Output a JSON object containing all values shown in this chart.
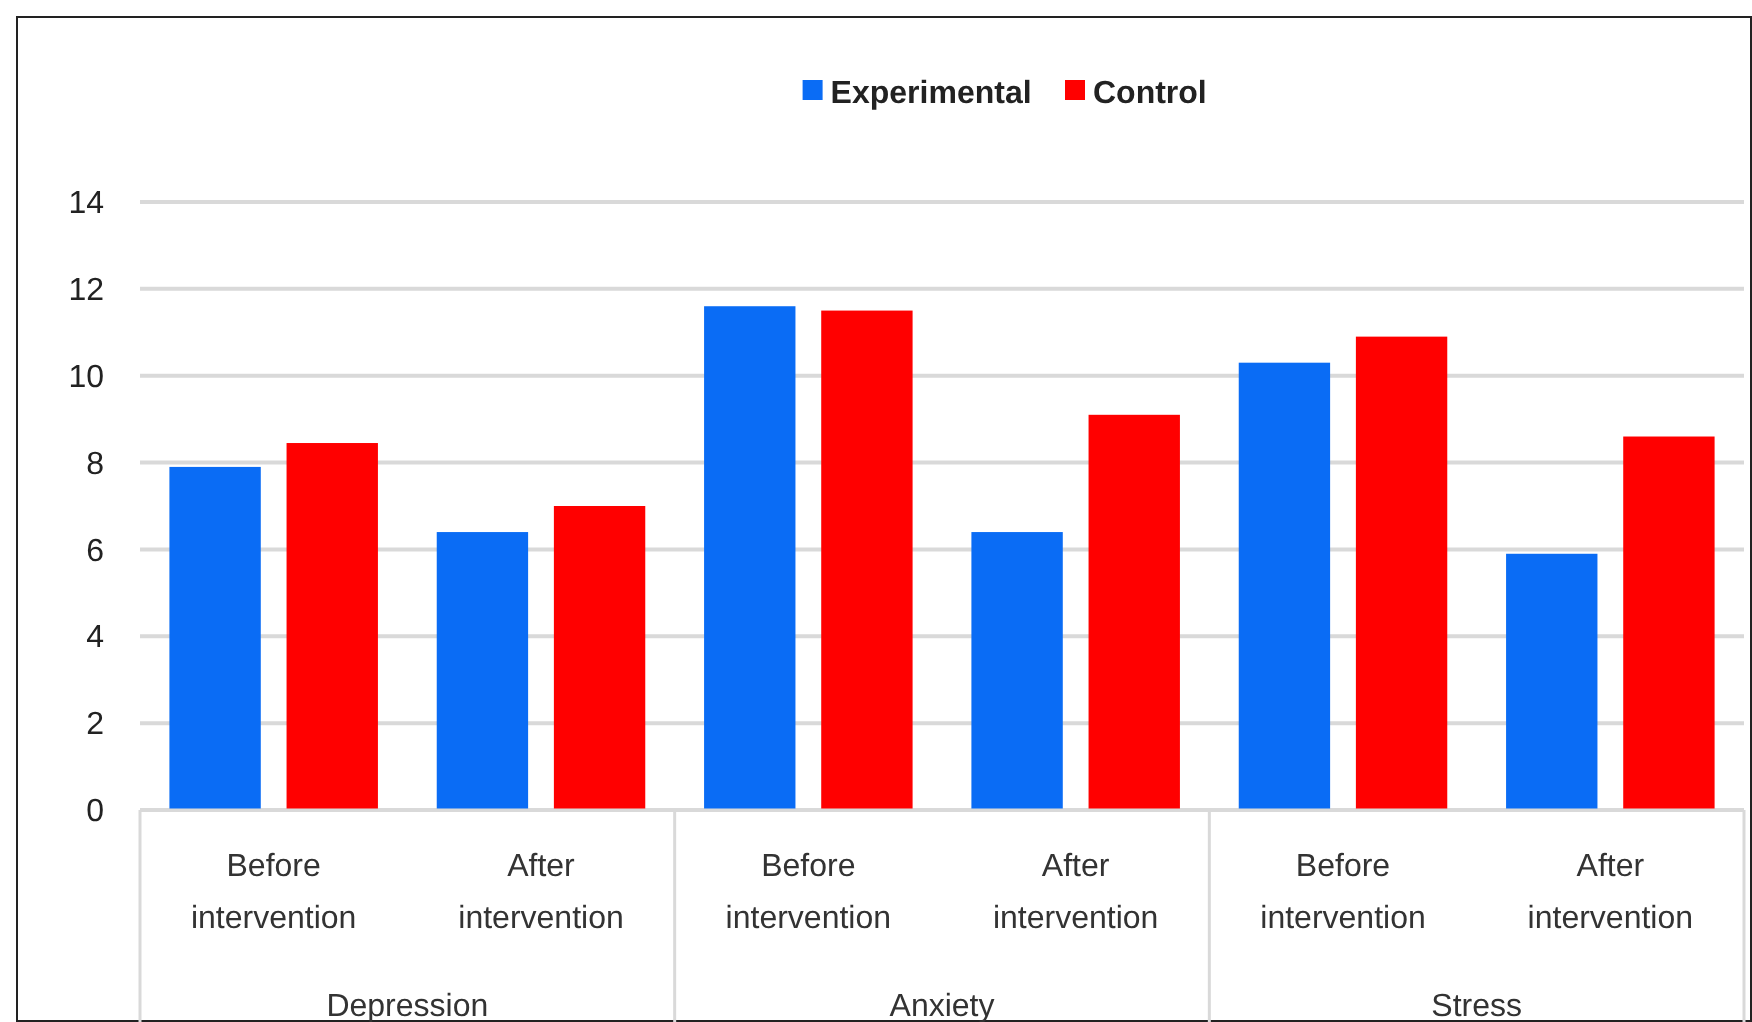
{
  "chart_data": {
    "type": "bar",
    "categories": [
      "Before intervention",
      "After intervention",
      "Before intervention",
      "After intervention",
      "Before intervention",
      "After intervention"
    ],
    "series": [
      {
        "name": "Experimental",
        "color": "#0a6cf5",
        "values": [
          7.9,
          6.4,
          11.6,
          6.4,
          10.3,
          5.9
        ]
      },
      {
        "name": "Control",
        "color": "#ff0000",
        "values": [
          8.45,
          7.0,
          11.5,
          9.1,
          10.9,
          8.6
        ]
      }
    ],
    "ylim": [
      0,
      14
    ],
    "yticks": [
      0,
      2,
      4,
      6,
      8,
      10,
      12,
      14
    ],
    "grid": "y",
    "legend": "top",
    "annotations": [
      "Depression",
      "Anxiety",
      "Stress"
    ]
  }
}
